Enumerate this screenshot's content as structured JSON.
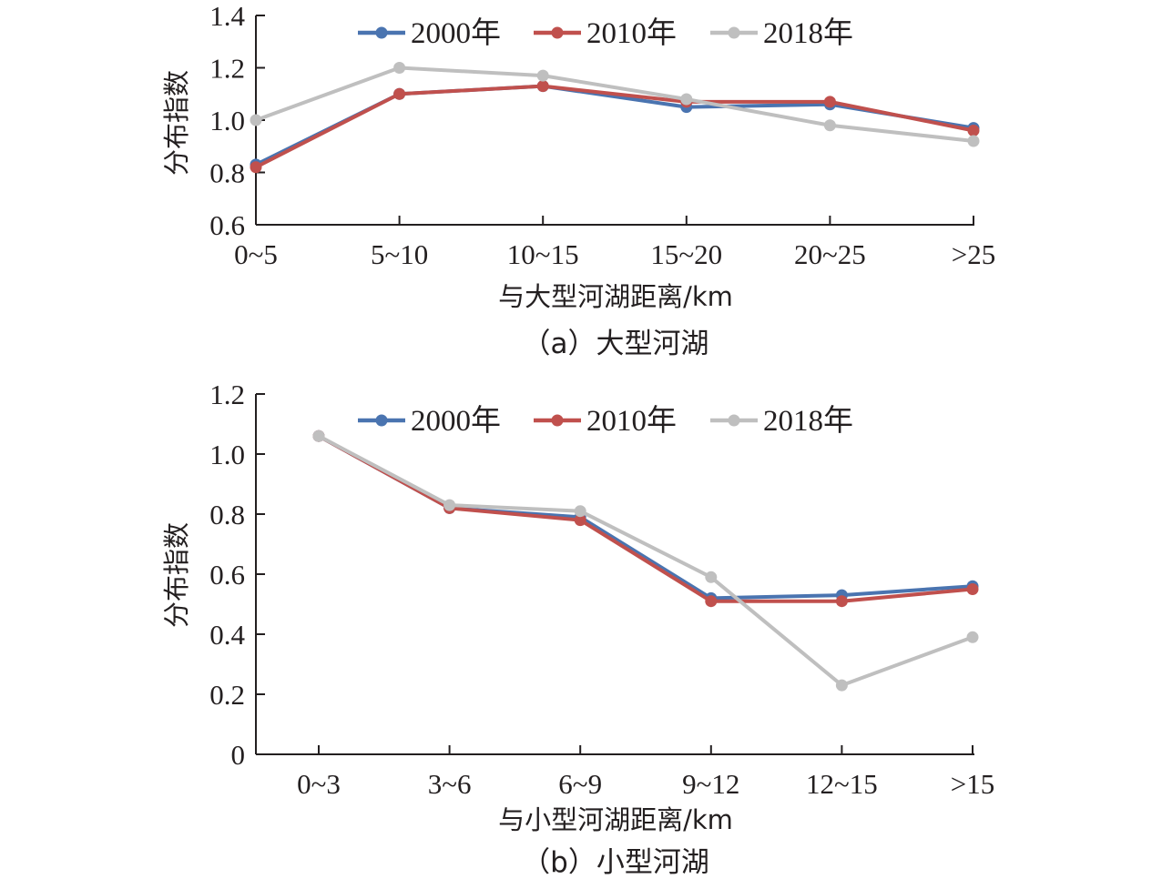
{
  "chart_data": [
    {
      "type": "line",
      "caption": "（a）大型河湖",
      "xlabel": "与大型河湖距离/km",
      "ylabel": "分布指数",
      "categories": [
        "0~5",
        "5~10",
        "10~15",
        "15~20",
        "20~25",
        ">25"
      ],
      "ylim": [
        0.6,
        1.4
      ],
      "yticks": [
        "0.6",
        "0.8",
        "1.0",
        "1.2",
        "1.4"
      ],
      "legend_position": "top",
      "series": [
        {
          "name": "2000年",
          "color": "#4a74b0",
          "values": [
            0.83,
            1.1,
            1.13,
            1.05,
            1.06,
            0.97
          ]
        },
        {
          "name": "2010年",
          "color": "#c0504d",
          "values": [
            0.82,
            1.1,
            1.13,
            1.07,
            1.07,
            0.96
          ]
        },
        {
          "name": "2018年",
          "color": "#bfbfbf",
          "values": [
            1.0,
            1.2,
            1.17,
            1.08,
            0.98,
            0.92
          ]
        }
      ]
    },
    {
      "type": "line",
      "caption": "（b）小型河湖",
      "xlabel": "与小型河湖距离/km",
      "ylabel": "分布指数",
      "categories": [
        "0~3",
        "3~6",
        "6~9",
        "9~12",
        "12~15",
        ">15"
      ],
      "ylim": [
        0,
        1.2
      ],
      "yticks": [
        "0",
        "0.2",
        "0.4",
        "0.6",
        "0.8",
        "1.0",
        "1.2"
      ],
      "legend_position": "top-right",
      "series": [
        {
          "name": "2000年",
          "color": "#4a74b0",
          "values": [
            1.06,
            0.82,
            0.79,
            0.52,
            0.53,
            0.56
          ]
        },
        {
          "name": "2010年",
          "color": "#c0504d",
          "values": [
            1.06,
            0.82,
            0.78,
            0.51,
            0.51,
            0.55
          ]
        },
        {
          "name": "2018年",
          "color": "#bfbfbf",
          "values": [
            1.06,
            0.83,
            0.81,
            0.59,
            0.23,
            0.39
          ]
        }
      ]
    }
  ]
}
